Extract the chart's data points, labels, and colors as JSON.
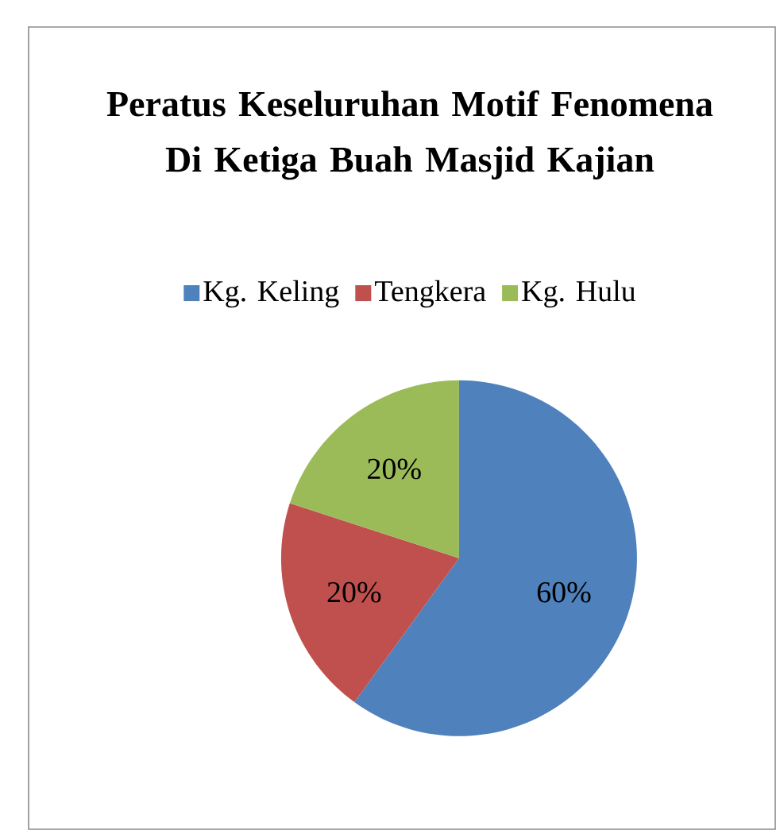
{
  "chart_data": {
    "type": "pie",
    "title": "Peratus Keseluruhan Motif Fenomena Di Ketiga Buah Masjid Kajian",
    "categories": [
      "Kg. Keling",
      "Tengkera",
      "Kg. Hulu"
    ],
    "values": [
      60,
      20,
      20
    ],
    "colors": [
      "#4f81bd",
      "#c0504d",
      "#9bbb59"
    ],
    "value_labels": [
      "60%",
      "20%",
      "20%"
    ],
    "legend": "top"
  }
}
